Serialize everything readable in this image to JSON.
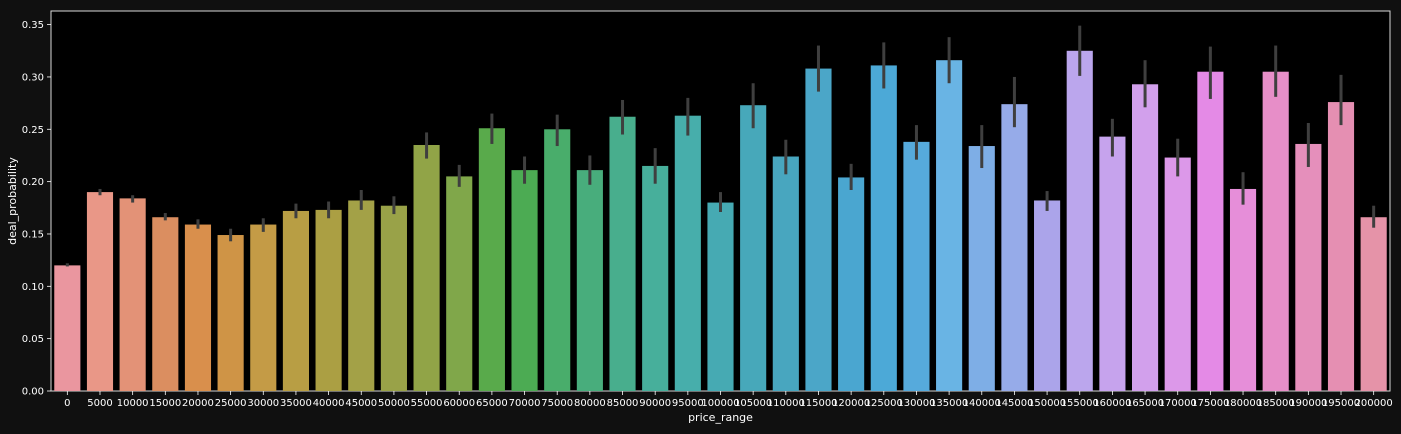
{
  "chart_data": {
    "type": "bar",
    "title": "",
    "xlabel": "price_range",
    "ylabel": "deal_probability",
    "ylim": [
      0,
      0.363
    ],
    "yticks": [
      0.0,
      0.05,
      0.1,
      0.15,
      0.2,
      0.25,
      0.3,
      0.35
    ],
    "ytick_labels": [
      "0.00",
      "0.05",
      "0.10",
      "0.15",
      "0.20",
      "0.25",
      "0.30",
      "0.35"
    ],
    "grid": false,
    "legend": "none",
    "background": "#000000",
    "categories": [
      "0",
      "5000",
      "10000",
      "15000",
      "20000",
      "25000",
      "30000",
      "35000",
      "40000",
      "45000",
      "50000",
      "55000",
      "60000",
      "65000",
      "70000",
      "75000",
      "80000",
      "85000",
      "90000",
      "95000",
      "100000",
      "105000",
      "110000",
      "115000",
      "120000",
      "125000",
      "130000",
      "135000",
      "140000",
      "145000",
      "150000",
      "155000",
      "160000",
      "165000",
      "170000",
      "175000",
      "180000",
      "185000",
      "190000",
      "195000",
      "200000"
    ],
    "values": [
      0.12,
      0.19,
      0.184,
      0.166,
      0.159,
      0.149,
      0.159,
      0.172,
      0.173,
      0.182,
      0.177,
      0.235,
      0.205,
      0.251,
      0.211,
      0.25,
      0.211,
      0.262,
      0.215,
      0.263,
      0.18,
      0.273,
      0.224,
      0.308,
      0.204,
      0.311,
      0.238,
      0.316,
      0.234,
      0.274,
      0.182,
      0.325,
      0.243,
      0.293,
      0.223,
      0.305,
      0.193,
      0.305,
      0.236,
      0.276,
      0.166
    ],
    "ci_low": [
      0.119,
      0.187,
      0.18,
      0.163,
      0.155,
      0.143,
      0.152,
      0.165,
      0.165,
      0.173,
      0.169,
      0.222,
      0.195,
      0.236,
      0.198,
      0.234,
      0.197,
      0.245,
      0.198,
      0.244,
      0.171,
      0.251,
      0.207,
      0.286,
      0.192,
      0.289,
      0.221,
      0.294,
      0.213,
      0.252,
      0.172,
      0.301,
      0.224,
      0.271,
      0.205,
      0.279,
      0.178,
      0.281,
      0.214,
      0.254,
      0.156
    ],
    "ci_high": [
      0.122,
      0.193,
      0.187,
      0.17,
      0.164,
      0.155,
      0.165,
      0.179,
      0.181,
      0.192,
      0.186,
      0.247,
      0.216,
      0.265,
      0.224,
      0.264,
      0.225,
      0.278,
      0.232,
      0.28,
      0.19,
      0.294,
      0.24,
      0.33,
      0.217,
      0.333,
      0.254,
      0.338,
      0.254,
      0.3,
      0.191,
      0.349,
      0.26,
      0.316,
      0.241,
      0.329,
      0.209,
      0.33,
      0.256,
      0.302,
      0.177
    ],
    "colors": [
      "#ea969f",
      "#e99787",
      "#e39277",
      "#db8e60",
      "#d98f4c",
      "#cf9446",
      "#c49b46",
      "#b89e44",
      "#ab9f43",
      "#a3a147",
      "#99a248",
      "#91a447",
      "#80a74a",
      "#59aa4b",
      "#4cab53",
      "#49ad6b",
      "#48ad7c",
      "#48ae8d",
      "#47af9b",
      "#47aeab",
      "#46aab3",
      "#47a8ba",
      "#48a6bf",
      "#4ba6c8",
      "#4aa6d0",
      "#4ca9d7",
      "#56aadc",
      "#69b4e4",
      "#7eaee6",
      "#96abe9",
      "#aba4ea",
      "#bba6ed",
      "#c6a3ed",
      "#d2a0ec",
      "#dc98e9",
      "#e48ae6",
      "#e68ed9",
      "#e78ec8",
      "#e58fbb",
      "#e58fb2",
      "#e593a8"
    ],
    "error_color": "#3f3f3f"
  }
}
